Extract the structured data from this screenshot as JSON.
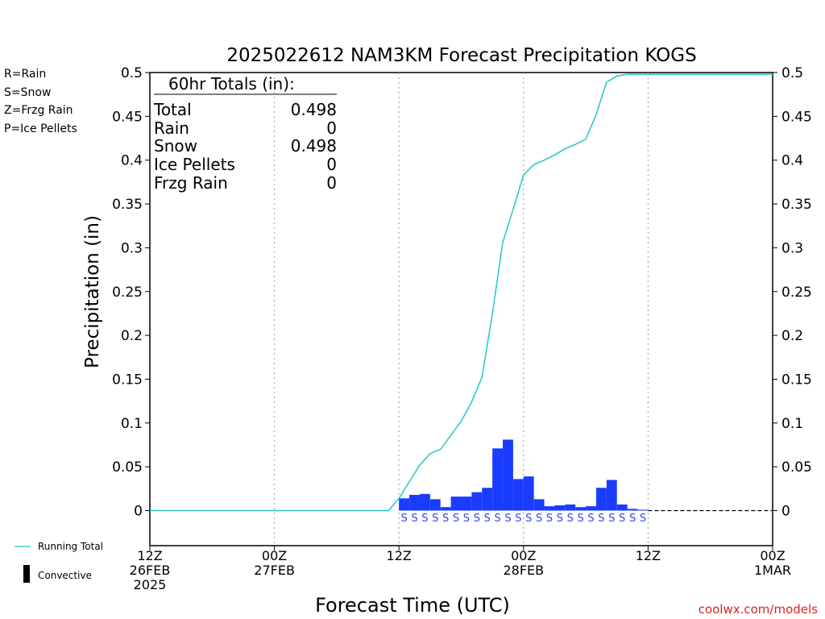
{
  "chart_data": {
    "type": "bar",
    "title": "2025022612 NAM3KM Forecast Precipitation KOGS",
    "xlabel": "Forecast Time (UTC)",
    "ylabel": "Precipitation (in)",
    "ylim": [
      -0.04,
      0.5
    ],
    "yticks": [
      "0.5",
      "0.45",
      "0.4",
      "0.35",
      "0.3",
      "0.25",
      "0.2",
      "0.15",
      "0.1",
      "0.05",
      "0"
    ],
    "x_axis": {
      "range_hours": [
        0,
        60
      ],
      "ticks": [
        {
          "hour": 0,
          "lines": [
            "12Z",
            "26FEB",
            "2025"
          ]
        },
        {
          "hour": 12,
          "lines": [
            "00Z",
            "27FEB"
          ]
        },
        {
          "hour": 24,
          "lines": [
            "12Z"
          ]
        },
        {
          "hour": 36,
          "lines": [
            "00Z",
            "28FEB"
          ]
        },
        {
          "hour": 48,
          "lines": [
            "12Z"
          ]
        },
        {
          "hour": 60,
          "lines": [
            "00Z",
            "1MAR"
          ]
        }
      ]
    },
    "legend": {
      "precip_types": [
        {
          "text": "R=Rain",
          "color": "#22dd22"
        },
        {
          "text": "S=Snow",
          "color": "#3344ee"
        },
        {
          "text": "Z=Frzg Rain",
          "color": "#ee8833"
        },
        {
          "text": "P=Ice Pellets",
          "color": "#dd22aa"
        }
      ],
      "series": [
        {
          "text": "Running Total",
          "color": "#22c8c0"
        },
        {
          "text": "Convective",
          "color": "#000000"
        }
      ]
    },
    "totals_box": {
      "header": "60hr Totals (in):",
      "rows": [
        {
          "label": "Total",
          "value": "0.498"
        },
        {
          "label": "Rain",
          "value": "0"
        },
        {
          "label": "Snow",
          "value": "0.498"
        },
        {
          "label": "Ice Pellets",
          "value": "0"
        },
        {
          "label": "Frzg Rain",
          "value": "0"
        }
      ]
    },
    "bars": {
      "name": "Snow",
      "color": "#1a3cff",
      "hour_start": [
        24,
        25,
        26,
        27,
        28,
        29,
        30,
        31,
        32,
        33,
        34,
        35,
        36,
        37,
        38,
        39,
        40,
        41,
        42,
        43,
        44,
        45,
        46,
        47
      ],
      "values": [
        0.014,
        0.018,
        0.019,
        0.013,
        0.004,
        0.016,
        0.016,
        0.021,
        0.026,
        0.071,
        0.081,
        0.036,
        0.039,
        0.013,
        0.005,
        0.006,
        0.007,
        0.004,
        0.005,
        0.026,
        0.035,
        0.007,
        0.002,
        0.001
      ]
    },
    "running_total": {
      "name": "Running Total",
      "color": "#22c8c0",
      "hours": [
        0,
        23,
        24,
        25,
        26,
        27,
        28,
        29,
        30,
        31,
        32,
        33,
        34,
        35,
        36,
        37,
        38,
        39,
        40,
        41,
        42,
        43,
        44,
        45,
        46,
        47,
        60
      ],
      "values": [
        0,
        0,
        0.014,
        0.033,
        0.052,
        0.065,
        0.07,
        0.086,
        0.102,
        0.124,
        0.152,
        0.225,
        0.306,
        0.344,
        0.383,
        0.395,
        0.4,
        0.406,
        0.413,
        0.418,
        0.424,
        0.452,
        0.489,
        0.496,
        0.498,
        0.498,
        0.498
      ]
    },
    "precip_type_markers": {
      "symbol": "S",
      "color": "#3344ee",
      "hour_start": [
        24,
        25,
        26,
        27,
        28,
        29,
        30,
        31,
        32,
        33,
        34,
        35,
        36,
        37,
        38,
        39,
        40,
        41,
        42,
        43,
        44,
        45,
        46,
        47
      ]
    },
    "grid": "vertical dotted at 12-hour intervals"
  },
  "watermark": "coolwx.com/models"
}
